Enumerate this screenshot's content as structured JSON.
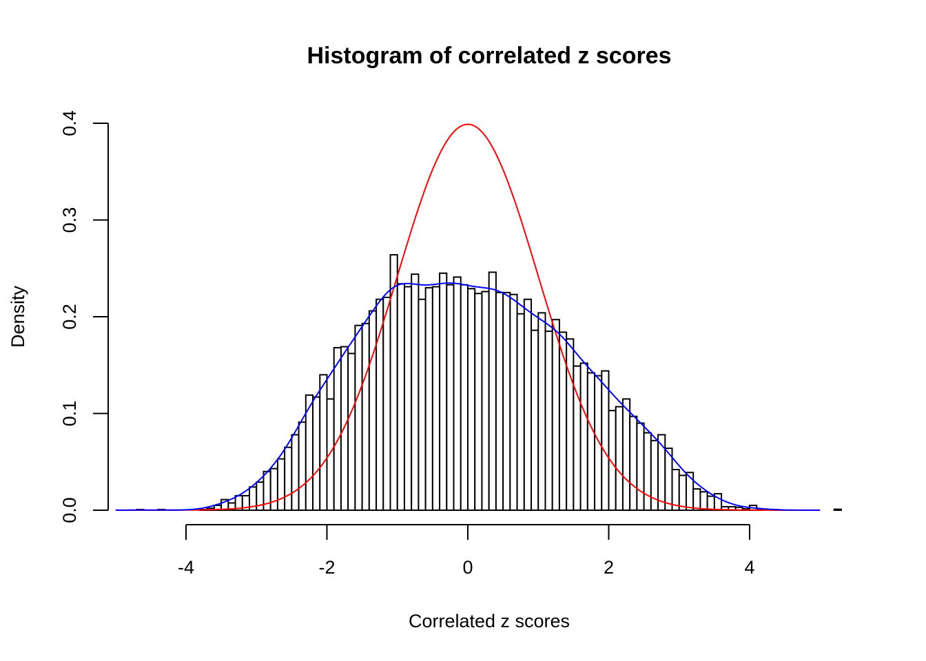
{
  "chart_data": {
    "type": "bar",
    "title": "Histogram of correlated z scores",
    "xlabel": "Correlated z scores",
    "ylabel": "Density",
    "x_ticks": [
      "-4",
      "-2",
      "0",
      "2",
      "4"
    ],
    "x_tick_values": [
      -4,
      -2,
      0,
      2,
      4
    ],
    "y_ticks": [
      "0.0",
      "0.1",
      "0.2",
      "0.3",
      "0.4"
    ],
    "y_tick_values": [
      0,
      0.1,
      0.2,
      0.3,
      0.4
    ],
    "xlim": [
      -5.2,
      5.4
    ],
    "ylim": [
      0,
      0.4
    ],
    "grid": false,
    "histogram": {
      "first_break": -4.7,
      "bin_width": 0.1,
      "density": [
        0.0007,
        0,
        0,
        0.0007,
        0,
        0,
        0,
        0,
        0,
        0.0007,
        0.002,
        0.005,
        0.011,
        0.0075,
        0.015,
        0.015,
        0.024,
        0.029,
        0.04,
        0.043,
        0.053,
        0.065,
        0.078,
        0.091,
        0.119,
        0.117,
        0.14,
        0.115,
        0.168,
        0.169,
        0.162,
        0.191,
        0.193,
        0.206,
        0.218,
        0.22,
        0.264,
        0.234,
        0.231,
        0.244,
        0.218,
        0.23,
        0.231,
        0.245,
        0.233,
        0.241,
        0.233,
        0.229,
        0.224,
        0.226,
        0.246,
        0.225,
        0.225,
        0.223,
        0.203,
        0.218,
        0.186,
        0.204,
        0.185,
        0.197,
        0.184,
        0.177,
        0.149,
        0.152,
        0.142,
        0.139,
        0.144,
        0.103,
        0.107,
        0.115,
        0.097,
        0.09,
        0.08,
        0.072,
        0.078,
        0.064,
        0.042,
        0.036,
        0.039,
        0.022,
        0.019,
        0.0145,
        0.017,
        0.0036,
        0.0036,
        0.003,
        0.0014,
        0.005,
        0.001,
        0,
        0.0007,
        0,
        0,
        0,
        0,
        0,
        0,
        0,
        0,
        0.001
      ],
      "fill": "#ffffff",
      "border": "#000000"
    },
    "curves": [
      {
        "kind": "normal density",
        "mean": 0,
        "sd": 1,
        "range": [
          -5,
          5
        ],
        "color": "#ff0000"
      },
      {
        "kind": "kernel density estimate",
        "bandwidth": 0.22,
        "range": [
          -5,
          5
        ],
        "color": "#0000ff"
      }
    ]
  }
}
